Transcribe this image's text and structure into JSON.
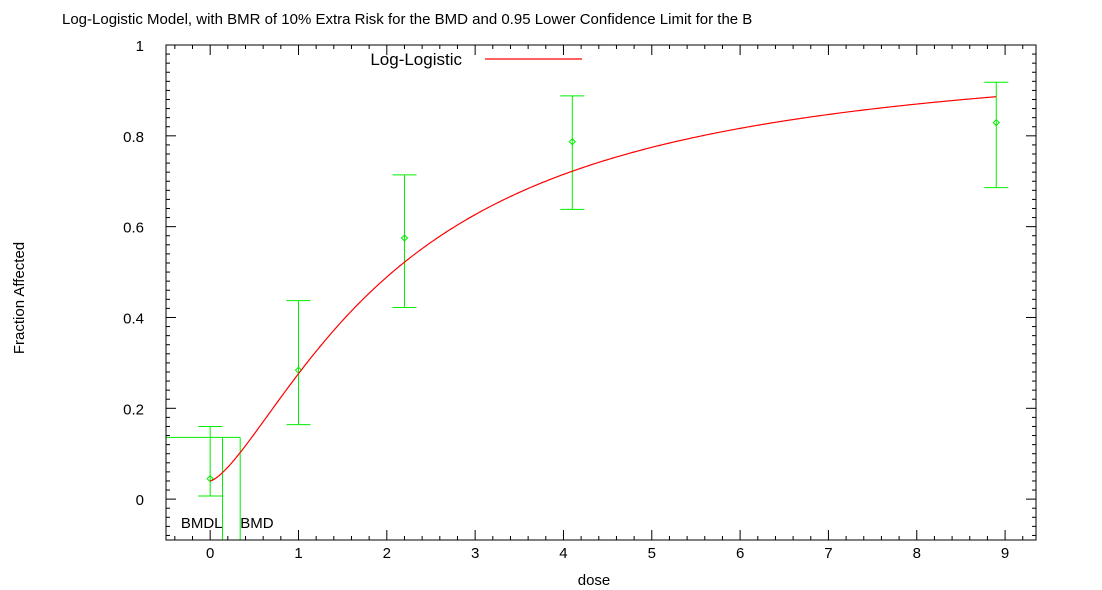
{
  "chart_data": {
    "type": "line",
    "title": "Log-Logistic Model, with BMR of 10% Extra Risk for the BMD and 0.95 Lower Confidence Limit for the B",
    "xlabel": "dose",
    "ylabel": "Fraction Affected",
    "xlim": [
      -0.5,
      9.35
    ],
    "ylim": [
      -0.09,
      1.0
    ],
    "xticks": [
      0,
      1,
      2,
      3,
      4,
      5,
      6,
      7,
      8,
      9
    ],
    "yticks": [
      0,
      0.2,
      0.4,
      0.6,
      0.8,
      1
    ],
    "legend": {
      "label": "Log-Logistic",
      "position": "top-left"
    },
    "colors": {
      "model": "#ff0000",
      "observed": "#00ee00",
      "frame": "#000000"
    },
    "model_curve": {
      "name": "Log-Logistic",
      "background": 0.04,
      "intercept": -1.12,
      "slope": 1.43,
      "x_start": 0.0,
      "x_end": 8.9
    },
    "observed": [
      {
        "x": 0.0,
        "y": 0.045,
        "lower": 0.007,
        "upper": 0.16
      },
      {
        "x": 1.0,
        "y": 0.284,
        "lower": 0.164,
        "upper": 0.437
      },
      {
        "x": 2.2,
        "y": 0.575,
        "lower": 0.422,
        "upper": 0.714
      },
      {
        "x": 4.1,
        "y": 0.787,
        "lower": 0.638,
        "upper": 0.888
      },
      {
        "x": 8.9,
        "y": 0.829,
        "lower": 0.686,
        "upper": 0.918
      }
    ],
    "bmr_level": 0.136,
    "bmdl": 0.14,
    "bmd": 0.34,
    "bmd_labels": {
      "bmdl": "BMDL",
      "bmd": "BMD"
    }
  }
}
